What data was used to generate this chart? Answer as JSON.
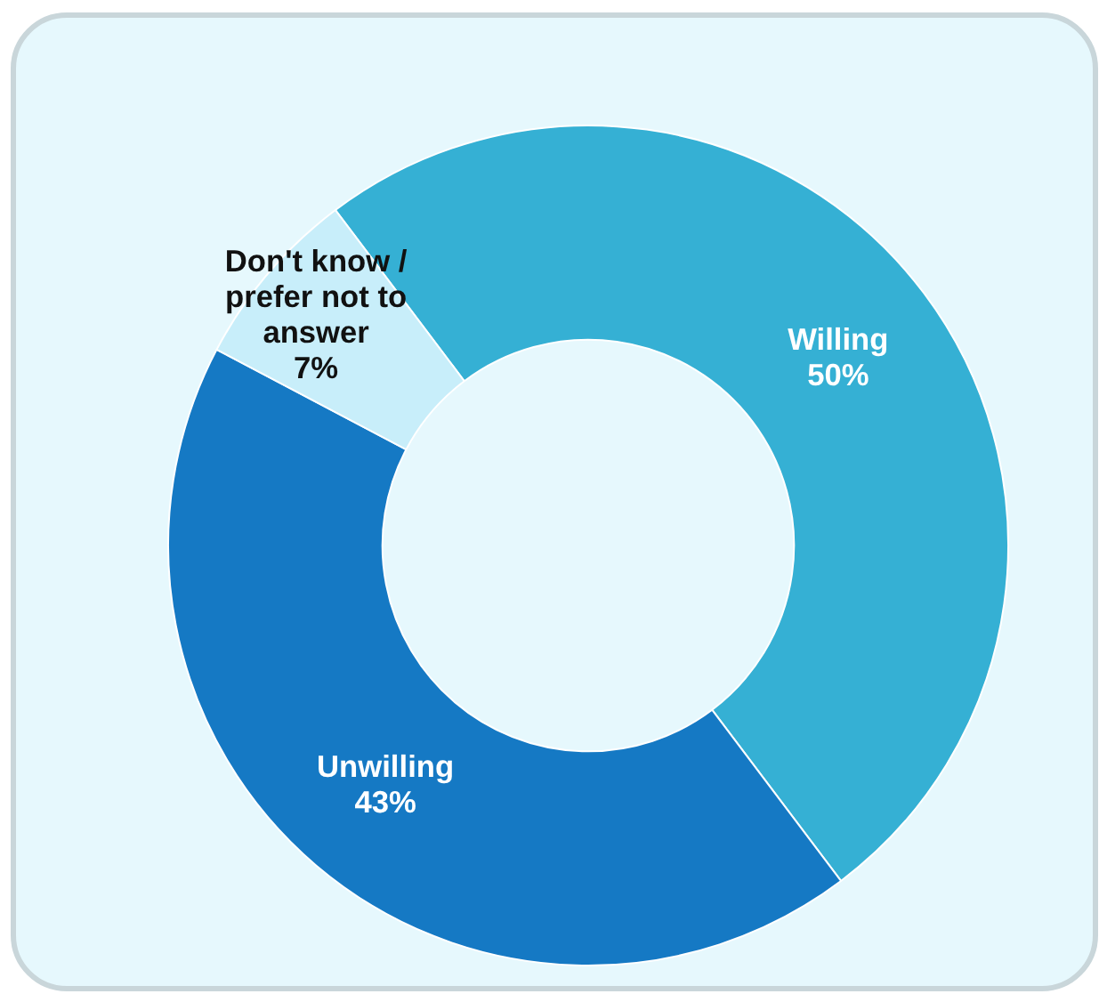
{
  "chart_data": {
    "type": "donut",
    "categories": [
      "Willing",
      "Unwilling",
      "Don't know /\nprefer not to\nanswer"
    ],
    "values": [
      50,
      43,
      7
    ],
    "colors": [
      "#35b0d4",
      "#1579c4",
      "#c8eefa"
    ],
    "value_labels": [
      "50%",
      "43%",
      "7%"
    ]
  }
}
